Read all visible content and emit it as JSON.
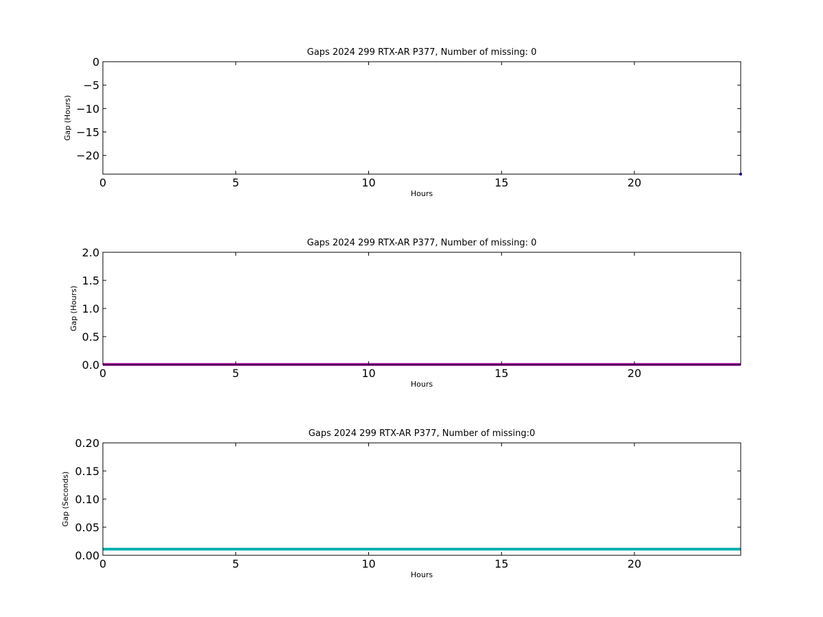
{
  "chart_data": [
    {
      "type": "line",
      "title": "Gaps 2024 299 RTX-AR  P377, Number of missing: 0",
      "xlabel": "Hours",
      "ylabel": "Gap (Hours)",
      "xlim": [
        0,
        24
      ],
      "ylim": [
        -24,
        0
      ],
      "x_ticks": [
        0,
        5,
        10,
        15,
        20
      ],
      "x_tick_labels": [
        "0",
        "5",
        "10",
        "15",
        "20"
      ],
      "y_ticks": [
        0,
        -5,
        -10,
        -15,
        -20
      ],
      "y_tick_labels": [
        "0",
        "−5",
        "−10",
        "−15",
        "−20"
      ],
      "grid": false,
      "series": [
        {
          "color": "#0000bb",
          "x": [
            24
          ],
          "y": [
            -24
          ]
        }
      ]
    },
    {
      "type": "line",
      "title": "Gaps 2024 299 RTX-AR  P377, Number of missing: 0",
      "xlabel": "Hours",
      "ylabel": "Gap (Hours)",
      "xlim": [
        0,
        24
      ],
      "ylim": [
        0,
        2
      ],
      "x_ticks": [
        0,
        5,
        10,
        15,
        20
      ],
      "x_tick_labels": [
        "0",
        "5",
        "10",
        "15",
        "20"
      ],
      "y_ticks": [
        0,
        0.5,
        1,
        1.5,
        2
      ],
      "y_tick_labels": [
        "0.0",
        "0.5",
        "1.0",
        "1.5",
        "2.0"
      ],
      "grid": false,
      "series": [
        {
          "color": "#a000a0",
          "x": [
            0,
            24
          ],
          "y": [
            0.005,
            0.005
          ]
        }
      ]
    },
    {
      "type": "line",
      "title": "Gaps 2024 299 RTX-AR  P377, Number of missing:0",
      "xlabel": "Hours",
      "ylabel": "Gap (Seconds)",
      "xlim": [
        0,
        24
      ],
      "ylim": [
        0,
        0.2
      ],
      "x_ticks": [
        0,
        5,
        10,
        15,
        20
      ],
      "x_tick_labels": [
        "0",
        "5",
        "10",
        "15",
        "20"
      ],
      "y_ticks": [
        0,
        0.05,
        0.1,
        0.15,
        0.2
      ],
      "y_tick_labels": [
        "0.00",
        "0.05",
        "0.10",
        "0.15",
        "0.20"
      ],
      "grid": false,
      "series": [
        {
          "color": "#00b0b0",
          "x": [
            0,
            24
          ],
          "y": [
            0.011,
            0.011
          ]
        }
      ]
    }
  ]
}
